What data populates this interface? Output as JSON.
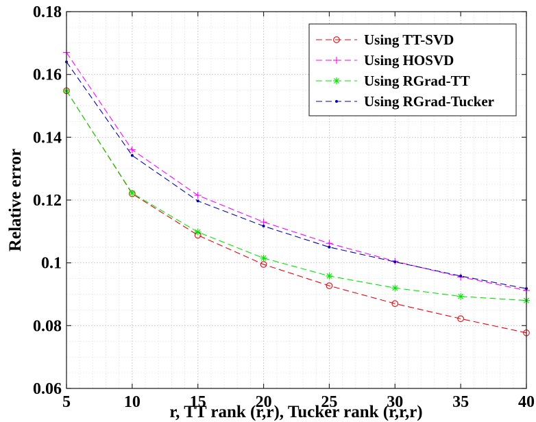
{
  "chart_data": {
    "type": "line",
    "title": "",
    "xlabel": "r, TT rank (r,r), Tucker rank (r,r,r)",
    "ylabel": "Relative error",
    "xlim": [
      5,
      40
    ],
    "ylim": [
      0.06,
      0.18
    ],
    "x_ticks": [
      5,
      10,
      15,
      20,
      25,
      30,
      35,
      40
    ],
    "y_ticks": [
      0.06,
      0.08,
      0.1,
      0.12,
      0.14,
      0.16,
      0.18
    ],
    "x_tick_labels": [
      "5",
      "10",
      "15",
      "20",
      "25",
      "30",
      "35",
      "40"
    ],
    "y_tick_labels": [
      "0.06",
      "0.08",
      "0.1",
      "0.12",
      "0.14",
      "0.16",
      "0.18"
    ],
    "grid": "on (major and minor, dotted)",
    "legend_placement": "top-right",
    "x": [
      5,
      10,
      15,
      20,
      25,
      30,
      35,
      40
    ],
    "series": [
      {
        "name": "Using TT-SVD",
        "color": "#e8000b",
        "marker": "circle",
        "values": [
          0.1548,
          0.122,
          0.1088,
          0.0995,
          0.0927,
          0.087,
          0.0822,
          0.0777
        ]
      },
      {
        "name": "Using HOSVD",
        "color": "#ff00ff",
        "marker": "plus",
        "values": [
          0.167,
          0.136,
          0.1215,
          0.113,
          0.1062,
          0.1005,
          0.0955,
          0.0912
        ]
      },
      {
        "name": "Using RGrad-TT",
        "color": "#00e600",
        "marker": "asterisk",
        "values": [
          0.1548,
          0.1222,
          0.1098,
          0.1015,
          0.0958,
          0.092,
          0.0893,
          0.088
        ]
      },
      {
        "name": "Using RGrad-Tucker",
        "color": "#0000b4",
        "marker": "dot",
        "values": [
          0.164,
          0.1342,
          0.1197,
          0.1117,
          0.105,
          0.1003,
          0.0958,
          0.0918
        ]
      }
    ]
  }
}
